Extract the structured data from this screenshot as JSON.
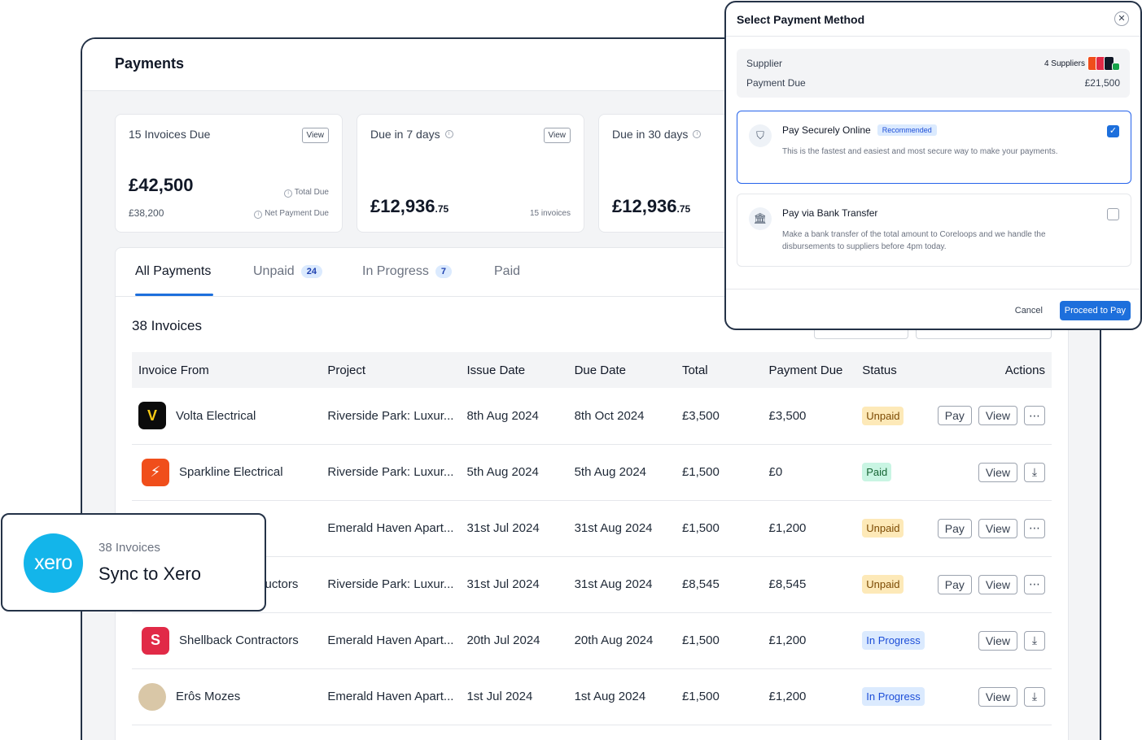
{
  "page": {
    "title": "Payments"
  },
  "summary": [
    {
      "label": "15 Invoices Due",
      "view": "View",
      "amount": "£42,500",
      "amount_cents": "",
      "total_due_label": "Total Due",
      "net_value": "£38,200",
      "net_label": "Net Payment Due"
    },
    {
      "label": "Due in 7 days",
      "view": "View",
      "amount": "£12,936",
      "amount_cents": ".75",
      "invoices": "15 invoices"
    },
    {
      "label": "Due in 30 days",
      "amount": "£12,936",
      "amount_cents": ".75"
    }
  ],
  "tabs": [
    {
      "label": "All Payments",
      "count": ""
    },
    {
      "label": "Unpaid",
      "count": "24"
    },
    {
      "label": "In Progress",
      "count": "7"
    },
    {
      "label": "Paid",
      "count": ""
    }
  ],
  "list": {
    "count_label": "38 Invoices"
  },
  "table": {
    "headers": [
      "Invoice From",
      "Project",
      "Issue Date",
      "Due Date",
      "Total",
      "Payment Due",
      "Status",
      "Actions"
    ],
    "rows": [
      {
        "from": "Volta Electrical",
        "logo": "V",
        "project": "Riverside Park: Luxur...",
        "issue": "8th Aug 2024",
        "due": "8th Oct 2024",
        "total": "£3,500",
        "payment_due": "£3,500",
        "status": "Unpaid"
      },
      {
        "from": "Sparkline Electrical",
        "logo": "⚡",
        "project": "Riverside Park: Luxur...",
        "issue": "5th Aug 2024",
        "due": "5th Aug 2024",
        "total": "£1,500",
        "payment_due": "£0",
        "status": "Paid"
      },
      {
        "from": "",
        "logo": "",
        "project": "Emerald Haven Apart...",
        "issue": "31st Jul 2024",
        "due": "31st Aug 2024",
        "total": "£1,500",
        "payment_due": "£1,200",
        "status": "Unpaid"
      },
      {
        "from": "uctors",
        "logo": "",
        "project": "Riverside Park: Luxur...",
        "issue": "31st Jul 2024",
        "due": "31st Aug 2024",
        "total": "£8,545",
        "payment_due": "£8,545",
        "status": "Unpaid"
      },
      {
        "from": "Shellback Contractors",
        "logo": "S",
        "project": "Emerald Haven Apart...",
        "issue": "20th Jul 2024",
        "due": "20th Aug 2024",
        "total": "£1,500",
        "payment_due": "£1,200",
        "status": "In Progress"
      },
      {
        "from": "Erôs Mozes",
        "logo": "",
        "project": "Emerald Haven Apart...",
        "issue": "1st Jul 2024",
        "due": "1st Aug 2024",
        "total": "£1,500",
        "payment_due": "£1,200",
        "status": "In Progress"
      }
    ],
    "actions": {
      "pay": "Pay",
      "view": "View",
      "more": "⋯",
      "download": "⤓"
    }
  },
  "xero": {
    "logo_text": "xero",
    "count": "38 Invoices",
    "title": "Sync to Xero"
  },
  "modal": {
    "title": "Select Payment Method",
    "close": "✕",
    "supplier_label": "Supplier",
    "supplier_value": "4 Suppliers",
    "payment_due_label": "Payment Due",
    "payment_due_value": "£21,500",
    "option_online": {
      "title": "Pay Securely Online",
      "badge": "Recommended",
      "desc": "This is the fastest and easiest and most secure way to make your payments.",
      "checked": true
    },
    "option_bank": {
      "title": "Pay via Bank Transfer",
      "desc": "Make a bank transfer of the total amount to Coreloops and we handle the disbursements to suppliers before 4pm today.",
      "checked": false
    },
    "cancel": "Cancel",
    "proceed": "Proceed to Pay"
  },
  "colors": {
    "accent": "#1d6fdc",
    "xero": "#13b5ea",
    "frame": "#243247"
  }
}
